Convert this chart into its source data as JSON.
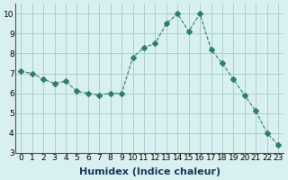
{
  "x": [
    0,
    1,
    2,
    3,
    4,
    5,
    6,
    7,
    8,
    9,
    10,
    11,
    12,
    13,
    14,
    15,
    16,
    17,
    18,
    19,
    20,
    21,
    22,
    23
  ],
  "y": [
    7.1,
    7.0,
    6.7,
    6.5,
    6.6,
    6.1,
    6.0,
    5.9,
    6.0,
    6.0,
    7.8,
    8.3,
    8.5,
    9.5,
    10.0,
    9.1,
    10.0,
    8.2,
    7.5,
    6.7,
    5.9,
    5.1,
    4.0,
    3.4
  ],
  "line_color": "#2e7d6e",
  "marker": "D",
  "marker_size": 3,
  "line_width": 0.8,
  "bg_color": "#d8f0ef",
  "grid_color": "#aacfcd",
  "xlabel": "Humidex (Indice chaleur)",
  "ylim": [
    3,
    10.5
  ],
  "xlim": [
    -0.5,
    23.5
  ],
  "yticks": [
    3,
    4,
    5,
    6,
    7,
    8,
    9,
    10
  ],
  "xticks": [
    0,
    1,
    2,
    3,
    4,
    5,
    6,
    7,
    8,
    9,
    10,
    11,
    12,
    13,
    14,
    15,
    16,
    17,
    18,
    19,
    20,
    21,
    22,
    23
  ],
  "xlabel_fontsize": 8,
  "tick_fontsize": 6.5
}
